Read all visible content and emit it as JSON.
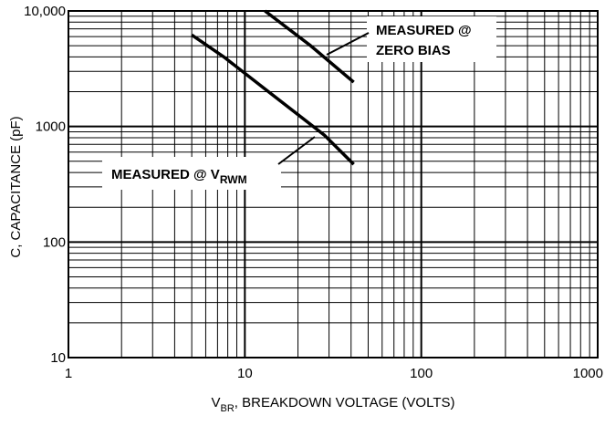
{
  "chart_data": {
    "type": "line",
    "xlabel": {
      "main": "V",
      "sub": "BR",
      "rest": ", BREAKDOWN VOLTAGE (VOLTS)"
    },
    "ylabel": "C, CAPACITANCE (pF)",
    "xscale": "log",
    "yscale": "log",
    "xlim": [
      1,
      1000
    ],
    "ylim": [
      10,
      10000
    ],
    "xticks": [
      1,
      10,
      100,
      1000
    ],
    "yticks": [
      10,
      100,
      1000,
      {
        "value": 10000,
        "label": "10,000"
      }
    ],
    "grid": true,
    "series": [
      {
        "color": "#000000",
        "x": [
          13,
          23.6,
          41.4
        ],
        "values": [
          10000,
          5000,
          2420
        ]
      },
      {
        "color": "#000000",
        "x": [
          5,
          7.6,
          14.6,
          28.2,
          41.4
        ],
        "values": [
          6200,
          4000,
          1840,
          843,
          471
        ]
      }
    ],
    "annotations": [
      {
        "lines": [
          "MEASURED @",
          "ZERO BIAS"
        ]
      },
      {
        "main": "MEASURED @ V",
        "sub": "RWM"
      }
    ]
  }
}
